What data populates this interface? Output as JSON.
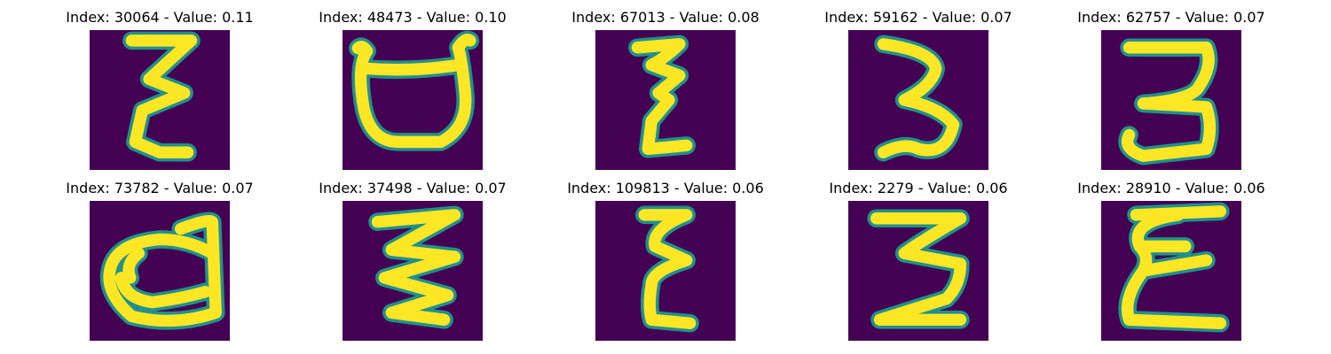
{
  "figure": {
    "background_color": "#440154",
    "stroke_color": "#fde725",
    "edge_color": "#21918c",
    "colormap": "viridis",
    "panels": [
      {
        "title": "Index: 30064 - Value: 0.11",
        "glyph": "epsilon-shape-letter"
      },
      {
        "title": "Index: 48473 - Value: 0.10",
        "glyph": "open-loop-letter"
      },
      {
        "title": "Index: 67013 - Value: 0.08",
        "glyph": "epsilon-shape-letter"
      },
      {
        "title": "Index: 59162 - Value: 0.07",
        "glyph": "digit-three-shape"
      },
      {
        "title": "Index: 62757 - Value: 0.07",
        "glyph": "digit-three-shape"
      },
      {
        "title": "Index: 73782 - Value: 0.07",
        "glyph": "closed-loop-letter"
      },
      {
        "title": "Index: 37498 - Value: 0.07",
        "glyph": "zigzag-three-shape"
      },
      {
        "title": "Index: 109813 - Value: 0.06",
        "glyph": "epsilon-shape-letter"
      },
      {
        "title": "Index: 2279 - Value: 0.06",
        "glyph": "zigzag-three-shape"
      },
      {
        "title": "Index: 28910 - Value: 0.06",
        "glyph": "epsilon-shape-letter"
      }
    ]
  }
}
